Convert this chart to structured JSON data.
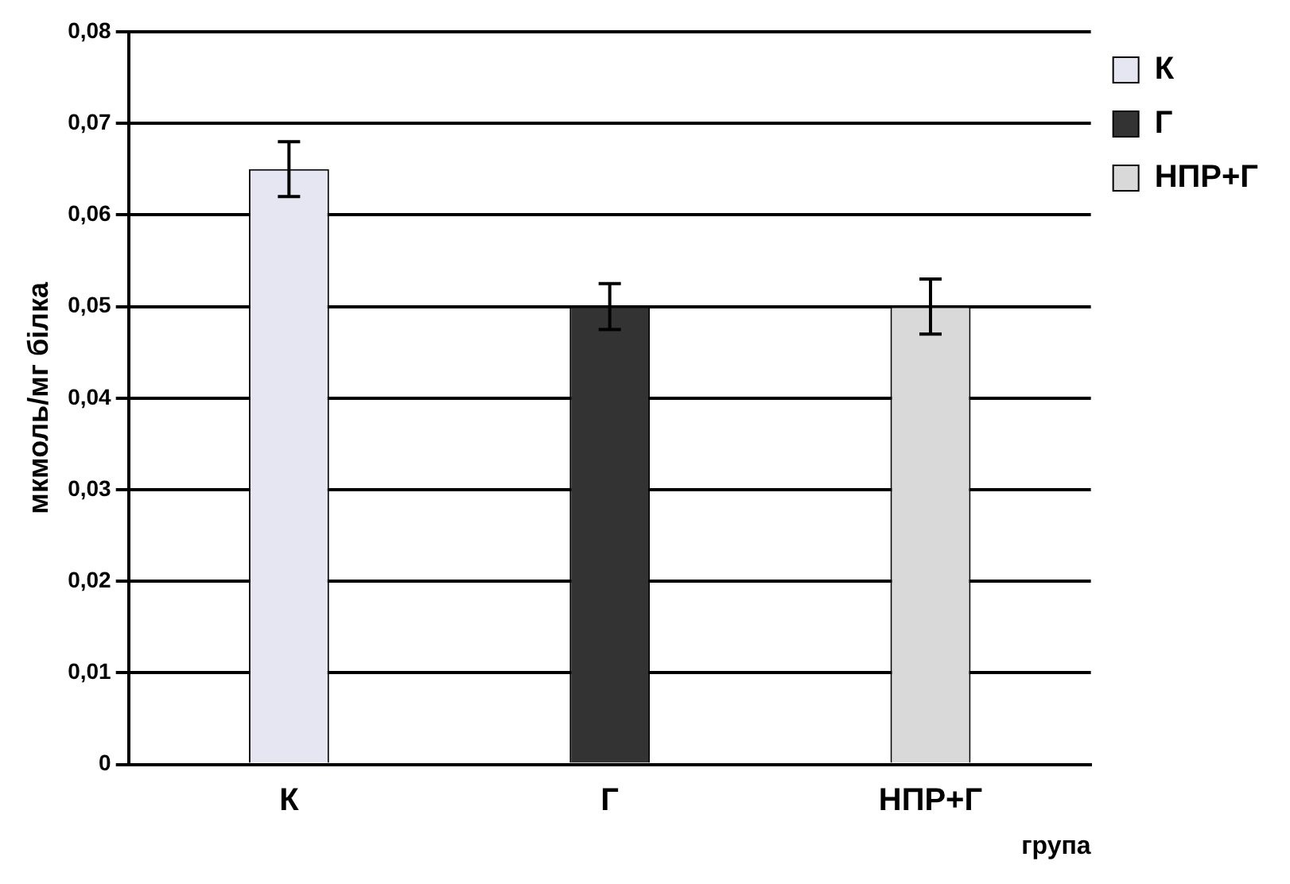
{
  "chart_data": {
    "type": "bar",
    "xlabel": "група",
    "ylabel": "мкмоль/мг білка",
    "categories": [
      "К",
      "Г",
      "НПР+Г"
    ],
    "series": [
      {
        "name": "К",
        "color": "#e6e6f2",
        "values": [
          0.065,
          null,
          null
        ],
        "errors": [
          0.003,
          null,
          null
        ]
      },
      {
        "name": "Г",
        "color": "#333333",
        "values": [
          null,
          0.05,
          null
        ],
        "errors": [
          null,
          0.0025,
          null
        ]
      },
      {
        "name": "НПР+Г",
        "color": "#d9d9d9",
        "values": [
          null,
          null,
          0.05
        ],
        "errors": [
          null,
          null,
          0.003
        ]
      }
    ],
    "ylim": [
      0,
      0.08
    ],
    "yticks": [
      0,
      {
        "value": 0.01,
        "label": "0,01"
      },
      {
        "value": 0.02,
        "label": "0,02"
      },
      {
        "value": 0.03,
        "label": "0,03"
      },
      {
        "value": 0.04,
        "label": "0,04"
      },
      {
        "value": 0.05,
        "label": "0,05"
      },
      {
        "value": 0.06,
        "label": "0,06"
      },
      {
        "value": 0.07,
        "label": "0,07"
      },
      {
        "value": 0.08,
        "label": "0,08"
      }
    ],
    "grid": "y",
    "legend": "right"
  }
}
